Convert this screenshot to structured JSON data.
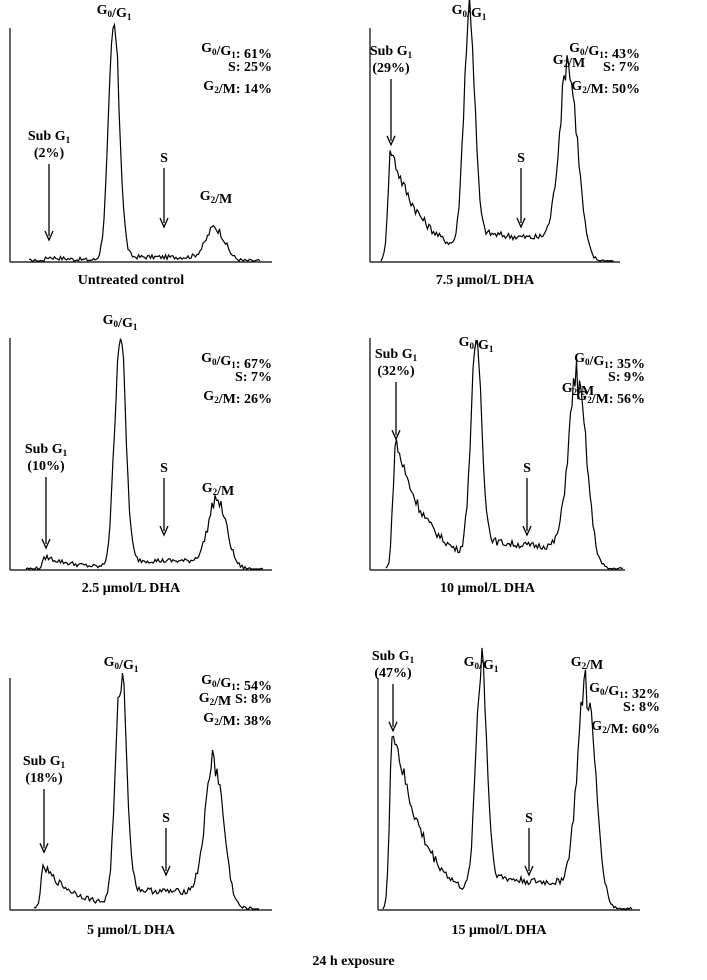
{
  "footer": "24 h exposure",
  "chart_data": [
    {
      "type": "area",
      "title": "Untreated control",
      "phases": {
        "sub_g1": "Sub G1",
        "g0g1": "G0/G1",
        "s": "S",
        "g2m": "G2/M"
      },
      "sub_g1_percent": "(2%)",
      "stats": [
        {
          "label": "G0/G1",
          "value": "61%"
        },
        {
          "label": "S",
          "value": "25%"
        },
        {
          "label": "G2/M",
          "value": "14%"
        }
      ],
      "peaks": {
        "sub_g1": 2,
        "g0g1": 1.0,
        "g2m": 0.1
      }
    },
    {
      "type": "area",
      "title": "7.5 μmol/L DHA",
      "phases": {
        "sub_g1": "Sub G1",
        "g0g1": "G0/G1",
        "s": "S",
        "g2m": "G2/M"
      },
      "sub_g1_percent": "(29%)",
      "stats": [
        {
          "label": "G0/G1",
          "value": "43%"
        },
        {
          "label": "S",
          "value": "7%"
        },
        {
          "label": "G2/M",
          "value": "50%"
        }
      ],
      "peaks": {
        "sub_g1": 29,
        "g0g1": 1.0,
        "g2m": 0.8
      }
    },
    {
      "type": "area",
      "title": "2.5 μmol/L DHA",
      "phases": {
        "sub_g1": "Sub G1",
        "g0g1": "G0/G1",
        "s": "S",
        "g2m": "G2/M"
      },
      "sub_g1_percent": "(10%)",
      "stats": [
        {
          "label": "G0/G1",
          "value": "67%"
        },
        {
          "label": "S",
          "value": "7%"
        },
        {
          "label": "G2/M",
          "value": "26%"
        }
      ],
      "peaks": {
        "sub_g1": 10,
        "g0g1": 1.0,
        "g2m": 0.23
      }
    },
    {
      "type": "area",
      "title": "10 μmol/L DHA",
      "phases": {
        "sub_g1": "Sub G1",
        "g0g1": "G0/G1",
        "s": "S",
        "g2m": "G2/M"
      },
      "sub_g1_percent": "(32%)",
      "stats": [
        {
          "label": "G0/G1",
          "value": "35%"
        },
        {
          "label": "S",
          "value": "9%"
        },
        {
          "label": "G2/M",
          "value": "56%"
        }
      ],
      "peaks": {
        "sub_g1": 32,
        "g0g1": 1.0,
        "g2m": 0.8
      }
    },
    {
      "type": "area",
      "title": "5 μmol/L DHA",
      "phases": {
        "sub_g1": "Sub G1",
        "g0g1": "G0/G1",
        "s": "S",
        "g2m": "G2/M"
      },
      "sub_g1_percent": "(18%)",
      "stats": [
        {
          "label": "G0/G1",
          "value": "54%"
        },
        {
          "label": "S",
          "value": "8%"
        },
        {
          "label": "G2/M",
          "value": "38%"
        }
      ],
      "peaks": {
        "sub_g1": 18,
        "g0g1": 1.0,
        "g2m": 0.6
      }
    },
    {
      "type": "area",
      "title": "15 μmol/L DHA",
      "phases": {
        "sub_g1": "Sub G1",
        "g0g1": "G0/G1",
        "s": "S",
        "g2m": "G2/M"
      },
      "sub_g1_percent": "(47%)",
      "stats": [
        {
          "label": "G0/G1",
          "value": "32%"
        },
        {
          "label": "S",
          "value": "8%"
        },
        {
          "label": "G2/M",
          "value": "60%"
        }
      ],
      "peaks": {
        "sub_g1": 47,
        "g0g1": 1.0,
        "g2m": 0.93
      }
    }
  ]
}
